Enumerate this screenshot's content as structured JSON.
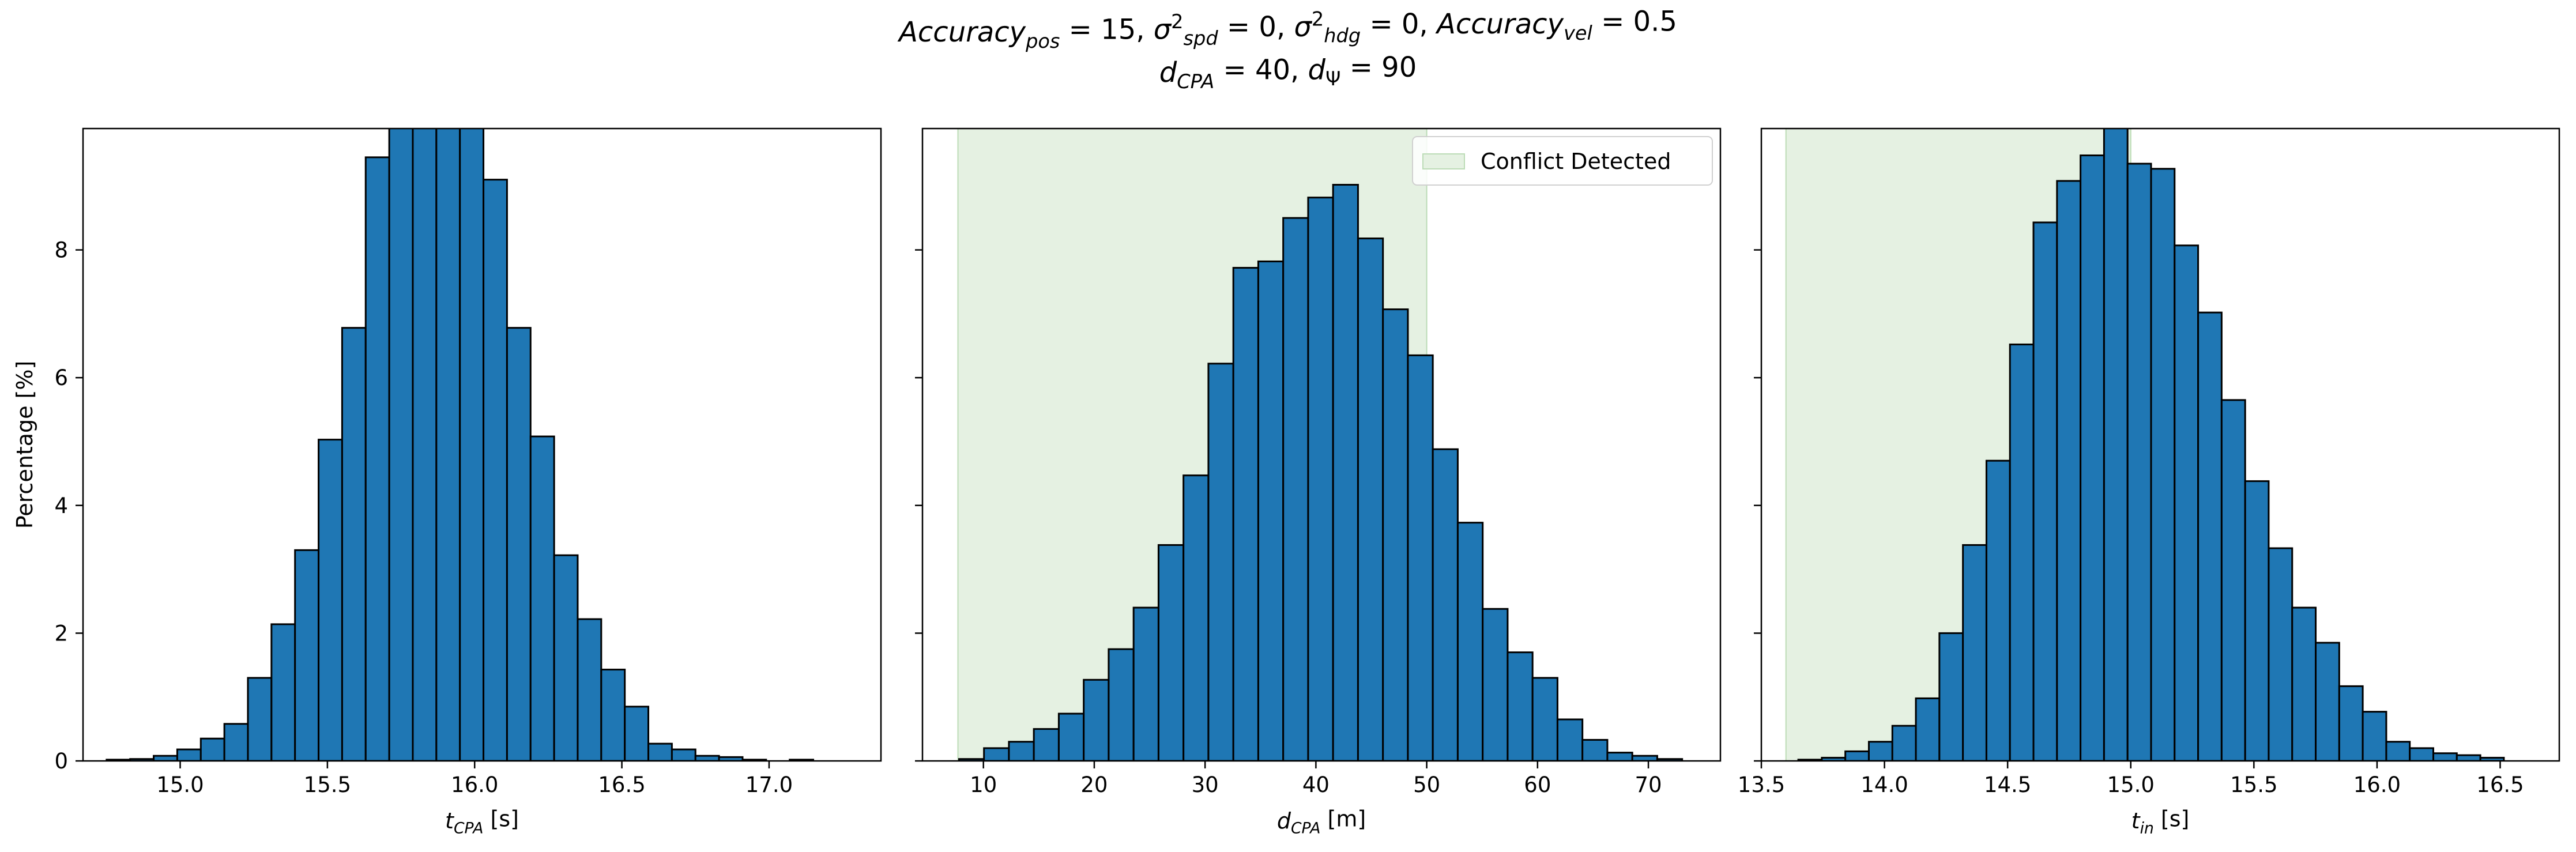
{
  "title": {
    "line1": [
      {
        "t": "Accuracy",
        "i": true
      },
      {
        "t": "pos",
        "i": true,
        "sub": true
      },
      {
        "t": " = 15, "
      },
      {
        "t": "σ",
        "i": true
      },
      {
        "t": "2",
        "sup": true
      },
      {
        "t": "spd",
        "i": true,
        "sub": true
      },
      {
        "t": " = 0, "
      },
      {
        "t": "σ",
        "i": true
      },
      {
        "t": "2",
        "sup": true
      },
      {
        "t": "hdg",
        "i": true,
        "sub": true
      },
      {
        "t": " = 0, "
      },
      {
        "t": "Accuracy",
        "i": true
      },
      {
        "t": "vel",
        "i": true,
        "sub": true
      },
      {
        "t": " = 0.5"
      }
    ],
    "line2": [
      {
        "t": "d",
        "i": true
      },
      {
        "t": "CPA",
        "i": true,
        "sub": true
      },
      {
        "t": " = 40, "
      },
      {
        "t": "d",
        "i": true
      },
      {
        "t": "Ψ",
        "sub": true
      },
      {
        "t": " = 90"
      }
    ]
  },
  "colors": {
    "bar": "#1f77b4",
    "edge": "#000000",
    "shade": "#e5f1e2",
    "shade_edge": "#bcdcb6"
  },
  "chart_data": [
    {
      "type": "bar",
      "xlabel": [
        {
          "t": "t",
          "i": true
        },
        {
          "t": "CPA",
          "i": true,
          "sub": true
        },
        {
          "t": " [s]"
        }
      ],
      "ylabel": "Percentage [%]",
      "xlim": [
        14.67,
        17.38
      ],
      "ylim": [
        0,
        9.9
      ],
      "xticks": [
        15.0,
        15.5,
        16.0,
        16.5,
        17.0
      ],
      "xtick_labels": [
        "15.0",
        "15.5",
        "16.0",
        "16.5",
        "17.0"
      ],
      "yticks": [
        0,
        2,
        4,
        6,
        8
      ],
      "ytick_labels": [
        "0",
        "2",
        "4",
        "6",
        "8"
      ],
      "show_ytick_labels": true,
      "bin_start": 14.75,
      "bin_width": 0.08,
      "values": [
        0.02,
        0.03,
        0.08,
        0.18,
        0.35,
        0.58,
        1.3,
        2.14,
        3.3,
        5.03,
        6.78,
        9.45,
        10.5,
        10.2,
        10.6,
        10.2,
        9.1,
        6.78,
        5.08,
        3.22,
        2.22,
        1.43,
        0.85,
        0.27,
        0.18,
        0.08,
        0.06,
        0.02,
        0.0,
        0.02
      ],
      "legend": null
    },
    {
      "type": "bar",
      "xlabel": [
        {
          "t": "d",
          "i": true
        },
        {
          "t": "CPA",
          "i": true,
          "sub": true
        },
        {
          "t": " [m]"
        }
      ],
      "ylabel": "",
      "xlim": [
        4.5,
        76.5
      ],
      "ylim": [
        0,
        9.9
      ],
      "xticks": [
        10,
        20,
        30,
        40,
        50,
        60,
        70
      ],
      "xtick_labels": [
        "10",
        "20",
        "30",
        "40",
        "50",
        "60",
        "70"
      ],
      "yticks": [
        0,
        2,
        4,
        6,
        8
      ],
      "ytick_labels": [
        "0",
        "2",
        "4",
        "6",
        "8"
      ],
      "show_ytick_labels": false,
      "bin_start": 7.8,
      "bin_width": 2.25,
      "values": [
        0.03,
        0.2,
        0.3,
        0.5,
        0.74,
        1.27,
        1.75,
        2.4,
        3.38,
        4.47,
        6.22,
        7.72,
        7.82,
        8.5,
        8.82,
        9.02,
        8.18,
        7.07,
        6.35,
        4.88,
        3.73,
        2.38,
        1.7,
        1.3,
        0.65,
        0.33,
        0.13,
        0.08,
        0.03
      ],
      "shade": [
        7.7,
        50
      ],
      "legend": {
        "label": "Conflict Detected",
        "position": "top-right"
      }
    },
    {
      "type": "bar",
      "xlabel": [
        {
          "t": "t",
          "i": true
        },
        {
          "t": "in",
          "i": true,
          "sub": true
        },
        {
          "t": " [s]"
        }
      ],
      "ylabel": "",
      "xlim": [
        13.5,
        16.74
      ],
      "ylim": [
        0,
        9.9
      ],
      "xticks": [
        13.5,
        14.0,
        14.5,
        15.0,
        15.5,
        16.0,
        16.5
      ],
      "xtick_labels": [
        "13.5",
        "14.0",
        "14.5",
        "15.0",
        "15.5",
        "16.0",
        "16.5"
      ],
      "yticks": [
        0,
        2,
        4,
        6,
        8
      ],
      "ytick_labels": [
        "0",
        "2",
        "4",
        "6",
        "8"
      ],
      "show_ytick_labels": false,
      "bin_start": 13.65,
      "bin_width": 0.0955,
      "values": [
        0.02,
        0.05,
        0.15,
        0.3,
        0.55,
        0.98,
        2.0,
        3.38,
        4.7,
        6.52,
        8.43,
        9.08,
        9.48,
        10.2,
        9.35,
        9.27,
        8.07,
        7.02,
        5.65,
        4.38,
        3.33,
        2.4,
        1.85,
        1.17,
        0.77,
        0.3,
        0.2,
        0.12,
        0.09,
        0.05
      ],
      "shade": [
        13.6,
        15.0
      ],
      "legend": null
    }
  ]
}
